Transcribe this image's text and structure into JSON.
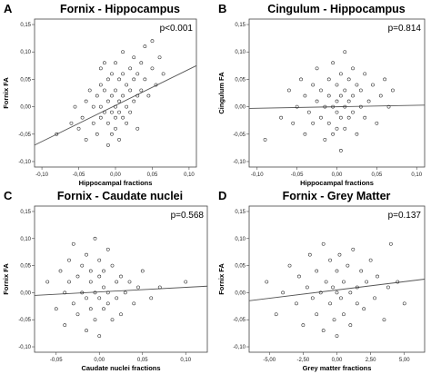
{
  "panels": [
    {
      "letter": "A",
      "title": "Fornix - Hippocampus",
      "pvalue": "p<0.001",
      "xlabel": "Hippocampal fractions",
      "ylabel": "Fornix FA",
      "xticks": [
        "-0,10",
        "-0,05",
        "0,00",
        "0,05",
        "0,10"
      ],
      "yticks": [
        "0,15",
        "0,10",
        "0,05",
        "0,00",
        "-0,05",
        "-0,10"
      ]
    },
    {
      "letter": "B",
      "title": "Cingulum - Hippocampus",
      "pvalue": "p=0.814",
      "xlabel": "Hippocampal fractions",
      "ylabel": "Cingulum FA",
      "xticks": [
        "-0,10",
        "-0,05",
        "0,00",
        "0,05",
        "0,10"
      ],
      "yticks": [
        "0,15",
        "0,10",
        "0,05",
        "0,00",
        "-0,05",
        "-0,10"
      ]
    },
    {
      "letter": "C",
      "title": "Fornix - Caudate nuclei",
      "pvalue": "p=0.568",
      "xlabel": "Caudate nuclei fractions",
      "ylabel": "Fornix FA",
      "xticks": [
        "-0,05",
        "0,00",
        "0,05",
        "0,10"
      ],
      "yticks": [
        "0,15",
        "0,10",
        "0,05",
        "0,00",
        "-0,05",
        "-0,10"
      ]
    },
    {
      "letter": "D",
      "title": "Fornix - Grey Matter",
      "pvalue": "p=0.137",
      "xlabel": "Grey matter fractions",
      "ylabel": "Fornix FA",
      "xticks": [
        "-5,00",
        "-2,50",
        "0,00",
        "2,50",
        "5,00"
      ],
      "yticks": [
        "0,15",
        "0,10",
        "0,05",
        "0,00",
        "-0,05",
        "-0,10"
      ]
    }
  ],
  "chart_data": [
    {
      "type": "scatter",
      "title": "Fornix - Hippocampus",
      "annotation": "p<0.001",
      "xlabel": "Hippocampal fractions",
      "ylabel": "Fornix FA",
      "xlim": [
        -0.11,
        0.11
      ],
      "ylim": [
        -0.11,
        0.16
      ],
      "fit_line": [
        [
          -0.11,
          -0.07
        ],
        [
          0.11,
          0.075
        ]
      ],
      "points": [
        [
          -0.08,
          -0.05
        ],
        [
          -0.06,
          -0.03
        ],
        [
          -0.055,
          0.0
        ],
        [
          -0.05,
          -0.04
        ],
        [
          -0.045,
          -0.02
        ],
        [
          -0.04,
          0.01
        ],
        [
          -0.04,
          -0.06
        ],
        [
          -0.035,
          0.03
        ],
        [
          -0.03,
          0.0
        ],
        [
          -0.03,
          -0.03
        ],
        [
          -0.025,
          0.02
        ],
        [
          -0.025,
          -0.05
        ],
        [
          -0.02,
          0.07
        ],
        [
          -0.02,
          0.04
        ],
        [
          -0.02,
          0.0
        ],
        [
          -0.02,
          -0.02
        ],
        [
          -0.015,
          0.08
        ],
        [
          -0.015,
          0.03
        ],
        [
          -0.015,
          -0.01
        ],
        [
          -0.01,
          0.05
        ],
        [
          -0.01,
          0.01
        ],
        [
          -0.01,
          -0.03
        ],
        [
          -0.01,
          -0.07
        ],
        [
          -0.005,
          0.06
        ],
        [
          -0.005,
          0.02
        ],
        [
          -0.005,
          -0.01
        ],
        [
          -0.005,
          -0.05
        ],
        [
          0.0,
          0.08
        ],
        [
          0.0,
          0.03
        ],
        [
          0.0,
          0.0
        ],
        [
          0.0,
          -0.02
        ],
        [
          0.0,
          -0.04
        ],
        [
          0.005,
          0.05
        ],
        [
          0.005,
          0.01
        ],
        [
          0.005,
          -0.01
        ],
        [
          0.005,
          -0.06
        ],
        [
          0.01,
          0.1
        ],
        [
          0.01,
          0.06
        ],
        [
          0.01,
          0.02
        ],
        [
          0.01,
          -0.02
        ],
        [
          0.015,
          0.04
        ],
        [
          0.015,
          0.0
        ],
        [
          0.015,
          -0.03
        ],
        [
          0.02,
          0.07
        ],
        [
          0.02,
          0.03
        ],
        [
          0.02,
          -0.01
        ],
        [
          0.025,
          0.09
        ],
        [
          0.025,
          0.05
        ],
        [
          0.025,
          0.01
        ],
        [
          0.03,
          0.06
        ],
        [
          0.03,
          0.02
        ],
        [
          0.03,
          -0.04
        ],
        [
          0.035,
          0.08
        ],
        [
          0.035,
          0.03
        ],
        [
          0.04,
          0.11
        ],
        [
          0.04,
          0.05
        ],
        [
          0.045,
          0.02
        ],
        [
          0.05,
          0.12
        ],
        [
          0.05,
          0.07
        ],
        [
          0.055,
          0.04
        ],
        [
          0.06,
          0.09
        ],
        [
          0.065,
          0.06
        ]
      ]
    },
    {
      "type": "scatter",
      "title": "Cingulum - Hippocampus",
      "annotation": "p=0.814",
      "xlabel": "Hippocampal fractions",
      "ylabel": "Cingulum FA",
      "xlim": [
        -0.11,
        0.11
      ],
      "ylim": [
        -0.11,
        0.16
      ],
      "fit_line": [
        [
          -0.11,
          -0.003
        ],
        [
          0.11,
          0.003
        ]
      ],
      "points": [
        [
          -0.09,
          -0.06
        ],
        [
          -0.07,
          -0.02
        ],
        [
          -0.06,
          0.03
        ],
        [
          -0.055,
          -0.03
        ],
        [
          -0.05,
          0.0
        ],
        [
          -0.045,
          0.05
        ],
        [
          -0.04,
          -0.05
        ],
        [
          -0.04,
          0.02
        ],
        [
          -0.035,
          -0.01
        ],
        [
          -0.03,
          0.04
        ],
        [
          -0.03,
          -0.03
        ],
        [
          -0.025,
          0.01
        ],
        [
          -0.025,
          0.07
        ],
        [
          -0.02,
          -0.02
        ],
        [
          -0.02,
          0.03
        ],
        [
          -0.015,
          0.0
        ],
        [
          -0.015,
          -0.06
        ],
        [
          -0.01,
          0.05
        ],
        [
          -0.01,
          0.02
        ],
        [
          -0.01,
          -0.03
        ],
        [
          -0.005,
          0.0
        ],
        [
          -0.005,
          0.08
        ],
        [
          -0.005,
          -0.05
        ],
        [
          0.0,
          0.04
        ],
        [
          0.0,
          0.01
        ],
        [
          0.0,
          -0.01
        ],
        [
          0.0,
          -0.04
        ],
        [
          0.005,
          0.06
        ],
        [
          0.005,
          0.02
        ],
        [
          0.005,
          -0.02
        ],
        [
          0.005,
          -0.08
        ],
        [
          0.01,
          0.1
        ],
        [
          0.01,
          0.03
        ],
        [
          0.01,
          0.0
        ],
        [
          0.01,
          -0.04
        ],
        [
          0.015,
          0.05
        ],
        [
          0.015,
          0.01
        ],
        [
          0.015,
          -0.02
        ],
        [
          0.02,
          0.07
        ],
        [
          0.02,
          0.02
        ],
        [
          0.02,
          -0.01
        ],
        [
          0.025,
          0.04
        ],
        [
          0.025,
          -0.05
        ],
        [
          0.03,
          0.0
        ],
        [
          0.03,
          0.03
        ],
        [
          0.035,
          0.06
        ],
        [
          0.035,
          -0.02
        ],
        [
          0.04,
          0.01
        ],
        [
          0.045,
          0.04
        ],
        [
          0.05,
          -0.03
        ],
        [
          0.055,
          0.02
        ],
        [
          0.06,
          0.05
        ],
        [
          0.065,
          0.0
        ],
        [
          0.07,
          0.03
        ]
      ]
    },
    {
      "type": "scatter",
      "title": "Fornix - Caudate nuclei",
      "annotation": "p=0.568",
      "xlabel": "Caudate nuclei fractions",
      "ylabel": "Fornix FA",
      "xlim": [
        -0.075,
        0.125
      ],
      "ylim": [
        -0.11,
        0.16
      ],
      "fit_line": [
        [
          -0.075,
          -0.005
        ],
        [
          0.125,
          0.012
        ]
      ],
      "points": [
        [
          -0.06,
          0.02
        ],
        [
          -0.05,
          -0.03
        ],
        [
          -0.045,
          0.04
        ],
        [
          -0.04,
          0.0
        ],
        [
          -0.04,
          -0.06
        ],
        [
          -0.035,
          0.06
        ],
        [
          -0.035,
          0.02
        ],
        [
          -0.03,
          -0.02
        ],
        [
          -0.03,
          0.09
        ],
        [
          -0.025,
          0.03
        ],
        [
          -0.025,
          -0.04
        ],
        [
          -0.02,
          0.0
        ],
        [
          -0.02,
          0.05
        ],
        [
          -0.015,
          -0.01
        ],
        [
          -0.015,
          0.07
        ],
        [
          -0.015,
          -0.07
        ],
        [
          -0.01,
          0.02
        ],
        [
          -0.01,
          -0.03
        ],
        [
          -0.01,
          0.04
        ],
        [
          -0.005,
          0.0
        ],
        [
          -0.005,
          0.1
        ],
        [
          -0.005,
          -0.05
        ],
        [
          0.0,
          0.03
        ],
        [
          0.0,
          -0.01
        ],
        [
          0.0,
          0.06
        ],
        [
          0.0,
          -0.08
        ],
        [
          0.005,
          0.01
        ],
        [
          0.005,
          0.04
        ],
        [
          0.005,
          -0.03
        ],
        [
          0.01,
          0.0
        ],
        [
          0.01,
          0.08
        ],
        [
          0.01,
          -0.02
        ],
        [
          0.015,
          0.05
        ],
        [
          0.015,
          -0.05
        ],
        [
          0.02,
          0.02
        ],
        [
          0.02,
          -0.01
        ],
        [
          0.025,
          0.03
        ],
        [
          0.025,
          -0.04
        ],
        [
          0.03,
          0.0
        ],
        [
          0.035,
          0.02
        ],
        [
          0.04,
          -0.02
        ],
        [
          0.045,
          0.01
        ],
        [
          0.05,
          0.04
        ],
        [
          0.06,
          -0.01
        ],
        [
          0.07,
          0.01
        ],
        [
          0.1,
          0.02
        ]
      ]
    },
    {
      "type": "scatter",
      "title": "Fornix - Grey Matter",
      "annotation": "p=0.137",
      "xlabel": "Grey matter fractions",
      "ylabel": "Fornix FA",
      "xlim": [
        -6.5,
        6.5
      ],
      "ylim": [
        -0.11,
        0.16
      ],
      "fit_line": [
        [
          -6.5,
          -0.015
        ],
        [
          6.5,
          0.025
        ]
      ],
      "points": [
        [
          -5.2,
          0.02
        ],
        [
          -4.5,
          -0.04
        ],
        [
          -4.0,
          0.0
        ],
        [
          -3.5,
          0.05
        ],
        [
          -3.0,
          -0.02
        ],
        [
          -2.8,
          0.03
        ],
        [
          -2.5,
          -0.06
        ],
        [
          -2.2,
          0.01
        ],
        [
          -2.0,
          0.07
        ],
        [
          -1.8,
          -0.01
        ],
        [
          -1.5,
          0.04
        ],
        [
          -1.5,
          -0.04
        ],
        [
          -1.2,
          0.0
        ],
        [
          -1.0,
          0.09
        ],
        [
          -1.0,
          -0.07
        ],
        [
          -0.8,
          0.02
        ],
        [
          -0.5,
          0.06
        ],
        [
          -0.5,
          -0.02
        ],
        [
          -0.3,
          0.01
        ],
        [
          -0.2,
          -0.05
        ],
        [
          0.0,
          0.04
        ],
        [
          0.0,
          0.0
        ],
        [
          0.0,
          -0.08
        ],
        [
          0.2,
          0.07
        ],
        [
          0.3,
          -0.01
        ],
        [
          0.5,
          0.02
        ],
        [
          0.5,
          -0.04
        ],
        [
          0.8,
          0.05
        ],
        [
          1.0,
          0.0
        ],
        [
          1.0,
          -0.06
        ],
        [
          1.2,
          0.08
        ],
        [
          1.5,
          0.01
        ],
        [
          1.5,
          -0.02
        ],
        [
          1.8,
          0.04
        ],
        [
          2.0,
          -0.03
        ],
        [
          2.2,
          0.02
        ],
        [
          2.5,
          0.06
        ],
        [
          2.8,
          -0.01
        ],
        [
          3.0,
          0.03
        ],
        [
          3.5,
          -0.05
        ],
        [
          3.8,
          0.01
        ],
        [
          4.0,
          0.09
        ],
        [
          4.5,
          0.02
        ],
        [
          5.0,
          -0.02
        ]
      ]
    }
  ]
}
